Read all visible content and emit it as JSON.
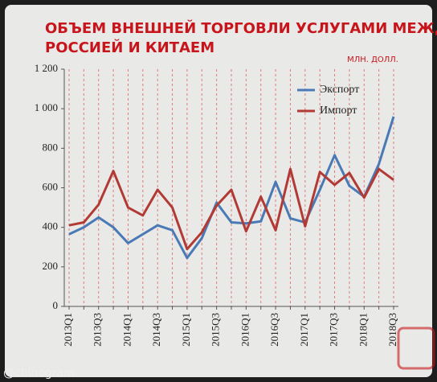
{
  "chart_data": {
    "type": "line",
    "title": "ОБЪЕМ ВНЕШНЕЙ ТОРГОВЛИ УСЛУГАМИ МЕЖДУ",
    "subtitle": "РОССИЕЙ И КИТАЕМ",
    "unit_label": "МЛН. ДОЛЛ.",
    "watermark": "@chinogram",
    "categories": [
      "2013Q1",
      null,
      "2013Q3",
      null,
      "2014Q1",
      null,
      "2014Q3",
      null,
      "2015Q1",
      null,
      "2015Q3",
      null,
      "2016Q1",
      null,
      "2016Q3",
      null,
      "2017Q1",
      null,
      "2017Q3",
      null,
      "2018Q1",
      null,
      "2018Q3"
    ],
    "series": [
      {
        "name": "Экспорт",
        "color": "#4a7ab5",
        "values": [
          365,
          400,
          450,
          400,
          320,
          365,
          410,
          385,
          245,
          345,
          525,
          425,
          420,
          430,
          630,
          445,
          425,
          590,
          765,
          610,
          555,
          720,
          960
        ]
      },
      {
        "name": "Импорт",
        "color": "#b23a35",
        "values": [
          410,
          425,
          515,
          685,
          500,
          460,
          590,
          500,
          290,
          375,
          510,
          590,
          380,
          555,
          385,
          695,
          405,
          680,
          615,
          675,
          550,
          695,
          640
        ]
      }
    ],
    "ylim": [
      0,
      1200
    ],
    "yticks": [
      0,
      200,
      400,
      600,
      800,
      {
        "value": 1000,
        "label": "1 000"
      },
      {
        "value": 1200,
        "label": "1 200"
      }
    ],
    "grid": true
  }
}
